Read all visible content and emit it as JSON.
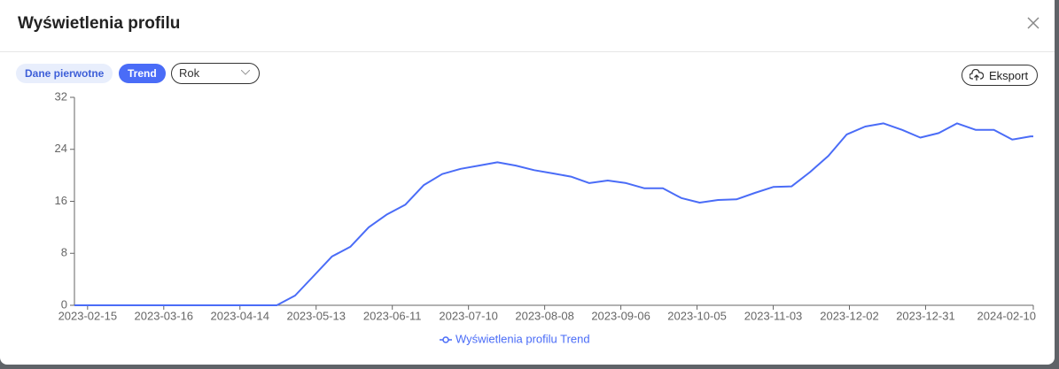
{
  "ui": {
    "title": "Wyświetlenia profilu",
    "tabs": [
      "Dane pierwotne",
      "Trend"
    ],
    "period": "Rok",
    "export": "Eksport"
  },
  "chart_data": {
    "type": "line",
    "x": [
      "2023-02-10",
      "2023-02-17",
      "2023-02-24",
      "2023-03-03",
      "2023-03-10",
      "2023-03-17",
      "2023-03-24",
      "2023-03-31",
      "2023-04-07",
      "2023-04-14",
      "2023-04-21",
      "2023-04-28",
      "2023-05-05",
      "2023-05-12",
      "2023-05-19",
      "2023-05-26",
      "2023-06-02",
      "2023-06-09",
      "2023-06-16",
      "2023-06-23",
      "2023-06-30",
      "2023-07-07",
      "2023-07-14",
      "2023-07-21",
      "2023-07-28",
      "2023-08-04",
      "2023-08-11",
      "2023-08-18",
      "2023-08-25",
      "2023-09-01",
      "2023-09-08",
      "2023-09-15",
      "2023-09-22",
      "2023-09-29",
      "2023-10-06",
      "2023-10-13",
      "2023-10-20",
      "2023-10-27",
      "2023-11-03",
      "2023-11-10",
      "2023-11-17",
      "2023-11-24",
      "2023-12-01",
      "2023-12-08",
      "2023-12-15",
      "2023-12-22",
      "2023-12-29",
      "2024-01-05",
      "2024-01-12",
      "2024-01-19",
      "2024-01-26",
      "2024-02-02",
      "2024-02-09",
      "2024-02-10"
    ],
    "series": [
      {
        "name": "Wyświetlenia profilu Trend",
        "color": "#4a6cf7",
        "values": [
          0,
          0,
          0,
          0,
          0,
          0,
          0,
          0,
          0,
          0,
          0,
          0,
          1.5,
          4.5,
          7.5,
          9,
          12,
          14,
          15.5,
          18.5,
          20.2,
          21,
          21.5,
          22,
          21.5,
          20.8,
          20.3,
          19.8,
          18.8,
          19.2,
          18.8,
          18,
          18,
          16.5,
          15.8,
          16.2,
          16.3,
          17.3,
          18.2,
          18.3,
          20.5,
          23,
          26.3,
          27.5,
          28,
          27,
          25.8,
          26.5,
          28,
          27,
          27,
          25.5,
          26,
          26
        ]
      }
    ],
    "xlim": [
      "2023-02-10",
      "2024-02-10"
    ],
    "xticks": [
      "2023-02-15",
      "2023-03-16",
      "2023-04-14",
      "2023-05-13",
      "2023-06-11",
      "2023-07-10",
      "2023-08-08",
      "2023-09-06",
      "2023-10-05",
      "2023-11-03",
      "2023-12-02",
      "2023-12-31",
      "2024-02-10"
    ],
    "ylim": [
      0,
      32
    ],
    "yticks": [
      0,
      8,
      16,
      24,
      32
    ],
    "grid": false
  }
}
